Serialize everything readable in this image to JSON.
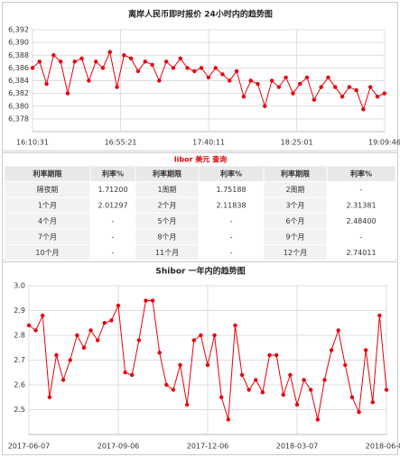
{
  "chart_data": [
    {
      "type": "line",
      "title": "离岸人民币即时报价 24小时内的趋势图",
      "color": "#e8000b",
      "grid": true,
      "x": [
        58231,
        58446,
        58661,
        58876,
        59091,
        59306,
        59521,
        59736,
        59951,
        60166,
        60381,
        60596,
        60811,
        61026,
        61241,
        61456,
        61671,
        61886,
        62101,
        62316,
        62531,
        62746,
        62961,
        63176,
        63391,
        63606,
        63821,
        64036,
        64251,
        64466,
        64681,
        64896,
        65111,
        65326,
        65541,
        65756,
        65971,
        66186,
        66401,
        66616,
        66831,
        67046,
        67261,
        67476,
        67691,
        67906,
        68121,
        68336,
        68551,
        68766,
        68981
      ],
      "values": [
        6.386,
        6.387,
        6.3835,
        6.388,
        6.387,
        6.382,
        6.387,
        6.3875,
        6.384,
        6.387,
        6.386,
        6.3885,
        6.383,
        6.388,
        6.3875,
        6.3855,
        6.387,
        6.3865,
        6.384,
        6.387,
        6.386,
        6.3875,
        6.386,
        6.3855,
        6.386,
        6.3845,
        6.386,
        6.385,
        6.384,
        6.3855,
        6.3815,
        6.384,
        6.3835,
        6.38,
        6.384,
        6.383,
        6.3845,
        6.382,
        6.3835,
        6.3845,
        6.381,
        6.383,
        6.3845,
        6.383,
        6.3815,
        6.383,
        6.3825,
        6.3795,
        6.383,
        6.3815,
        6.382
      ],
      "xlim": [
        58231,
        68986
      ],
      "xticks": [
        {
          "value": 58231,
          "label": "16:10:31"
        },
        {
          "value": 60921,
          "label": "16:55:21"
        },
        {
          "value": 63611,
          "label": "17:40:11"
        },
        {
          "value": 66301,
          "label": "18:25:01"
        },
        {
          "value": 68986,
          "label": "19:09:46"
        }
      ],
      "ylim": [
        6.376,
        6.392
      ],
      "yticks": [
        {
          "value": 6.392,
          "label": "6,392"
        },
        {
          "value": 6.39,
          "label": "6,390"
        },
        {
          "value": 6.388,
          "label": "6,388"
        },
        {
          "value": 6.386,
          "label": "6,386"
        },
        {
          "value": 6.384,
          "label": "6,384"
        },
        {
          "value": 6.382,
          "label": "6,382"
        },
        {
          "value": 6.38,
          "label": "6,380"
        },
        {
          "value": 6.378,
          "label": "6,378"
        }
      ]
    },
    {
      "type": "line",
      "title": "Shibor 一年内的趋势图",
      "color": "#e8000b",
      "grid": true,
      "x": [
        "2017-06-07",
        "2017-06-14",
        "2017-06-21",
        "2017-06-28",
        "2017-07-05",
        "2017-07-12",
        "2017-07-19",
        "2017-07-26",
        "2017-08-02",
        "2017-08-09",
        "2017-08-16",
        "2017-08-23",
        "2017-08-30",
        "2017-09-06",
        "2017-09-13",
        "2017-09-20",
        "2017-09-27",
        "2017-10-04",
        "2017-10-11",
        "2017-10-18",
        "2017-10-25",
        "2017-11-01",
        "2017-11-08",
        "2017-11-15",
        "2017-11-22",
        "2017-11-29",
        "2017-12-06",
        "2017-12-13",
        "2017-12-20",
        "2017-12-27",
        "2018-01-03",
        "2018-01-10",
        "2018-01-17",
        "2018-01-24",
        "2018-01-31",
        "2018-02-07",
        "2018-02-14",
        "2018-02-21",
        "2018-02-28",
        "2018-03-07",
        "2018-03-14",
        "2018-03-21",
        "2018-03-28",
        "2018-04-04",
        "2018-04-11",
        "2018-04-18",
        "2018-04-25",
        "2018-05-02",
        "2018-05-09",
        "2018-05-16",
        "2018-05-23",
        "2018-05-30",
        "2018-06-06"
      ],
      "values": [
        2.84,
        2.82,
        2.88,
        2.55,
        2.72,
        2.62,
        2.7,
        2.8,
        2.75,
        2.82,
        2.78,
        2.85,
        2.86,
        2.92,
        2.65,
        2.64,
        2.78,
        2.94,
        2.94,
        2.73,
        2.6,
        2.58,
        2.68,
        2.52,
        2.78,
        2.8,
        2.68,
        2.8,
        2.55,
        2.46,
        2.84,
        2.64,
        2.58,
        2.62,
        2.57,
        2.72,
        2.72,
        2.56,
        2.64,
        2.52,
        2.62,
        2.58,
        2.46,
        2.62,
        2.74,
        2.82,
        2.68,
        2.55,
        2.49,
        2.74,
        2.53,
        2.88,
        2.58
      ],
      "xlim": [
        "2017-06-07",
        "2018-06-06"
      ],
      "xticks": [
        "2017-06-07",
        "2017-09-06",
        "2017-12-06",
        "2018-03-07",
        "2018-06-06"
      ],
      "ylim": [
        2.4,
        3.0
      ],
      "yticks": [
        {
          "value": 3,
          "label": "3.0"
        },
        2.9,
        2.8,
        2.7,
        2.6,
        2.5
      ]
    }
  ],
  "table": {
    "title": "libor 美元 查询",
    "header": [
      "利率期限",
      "利率%",
      "利率期限",
      "利率%",
      "利率期限",
      "利率%"
    ],
    "rows": [
      [
        "隔夜期",
        "1.71200",
        "1周期",
        "1.75188",
        "2周期",
        "-"
      ],
      [
        "1个月",
        "2.01297",
        "2个月",
        "2.11838",
        "3个月",
        "2.31381"
      ],
      [
        "4个月",
        "-",
        "5个月",
        "-",
        "6个月",
        "2.48400"
      ],
      [
        "7个月",
        "-",
        "8个月",
        "-",
        "9个月",
        "-"
      ],
      [
        "10个月",
        "-",
        "11个月",
        "-",
        "12个月",
        "2.74011"
      ]
    ]
  }
}
